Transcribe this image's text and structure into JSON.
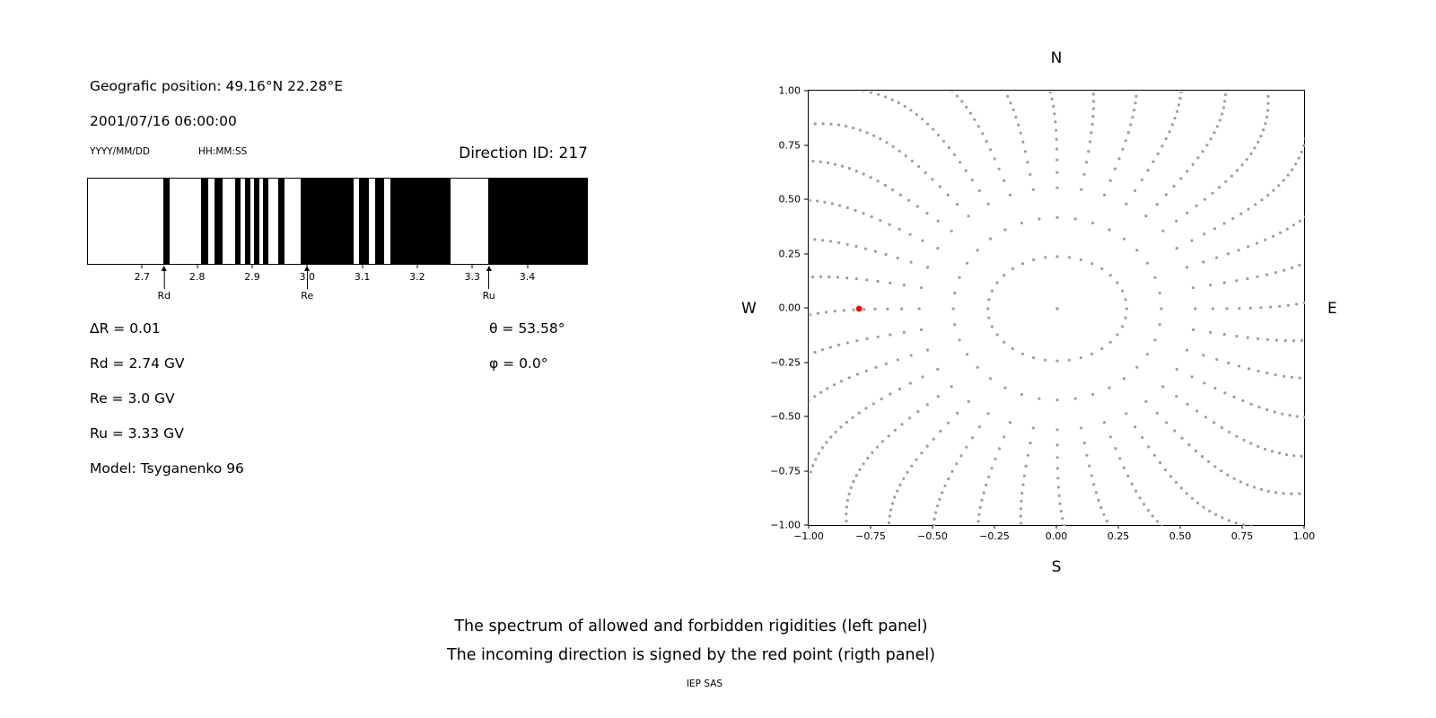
{
  "colors": {
    "background": "#ffffff",
    "ink": "#000000",
    "dot_gray": "#9e9e9e",
    "red": "#ff0000"
  },
  "left_panel": {
    "position": "Geografic position: 49.16°N 22.28°E",
    "datetime": "2001/07/16 06:00:00",
    "date_format": "YYYY/MM/DD",
    "time_format": "HH:MM:SS",
    "direction_id": "Direction ID: 217",
    "params": {
      "delta_r": "ΔR = 0.01",
      "rd": "Rd = 2.74 GV",
      "re": "Re = 3.0 GV",
      "ru": "Ru = 3.33 GV",
      "model": "Model: Tsyganenko 96",
      "theta": "θ = 53.58°",
      "phi": "φ = 0.0°"
    }
  },
  "right_panel": {
    "compass": {
      "north": "N",
      "south": "S",
      "east": "E",
      "west": "W"
    }
  },
  "caption": {
    "line1": "The spectrum of allowed and forbidden rigidities (left panel)",
    "line2": "The incoming direction is signed by the red point (rigth panel)",
    "credit": "IEP SAS"
  },
  "chart_data": [
    {
      "type": "bar",
      "name": "rigidity-spectrum",
      "description": "Spectrum of allowed (black) and forbidden (white) rigidity bands",
      "x_range_gv": [
        2.6,
        3.51
      ],
      "x_ticks": [
        "2.7",
        "2.8",
        "2.9",
        "3.0",
        "3.1",
        "3.2",
        "3.3",
        "3.4"
      ],
      "allowed_bands_gv": [
        [
          2.737,
          2.749
        ],
        [
          2.806,
          2.82
        ],
        [
          2.83,
          2.845
        ],
        [
          2.868,
          2.879
        ],
        [
          2.887,
          2.897
        ],
        [
          2.902,
          2.912
        ],
        [
          2.919,
          2.929
        ],
        [
          2.947,
          2.958
        ],
        [
          2.988,
          3.085
        ],
        [
          3.095,
          3.112
        ],
        [
          3.124,
          3.14
        ],
        [
          3.152,
          3.262
        ],
        [
          3.33,
          3.51
        ]
      ],
      "markers": [
        {
          "label": "Rd",
          "x_gv": 2.74
        },
        {
          "label": "Re",
          "x_gv": 3.0
        },
        {
          "label": "Ru",
          "x_gv": 3.33
        }
      ],
      "delta_r_gv": 0.01
    },
    {
      "type": "scatter",
      "name": "incoming-direction-map",
      "xlim": [
        -1.0,
        1.0
      ],
      "ylim": [
        -1.0,
        1.0
      ],
      "x_tick_labels": [
        "−1.00",
        "−0.75",
        "−0.50",
        "−0.25",
        "0.00",
        "0.25",
        "0.50",
        "0.75",
        "1.00"
      ],
      "y_tick_labels": [
        "1.00",
        "0.75",
        "0.50",
        "0.25",
        "0.00",
        "−0.25",
        "−0.50",
        "−0.75",
        "−1.00"
      ],
      "red_point": {
        "x": -0.8,
        "y": 0.0
      },
      "dots": {
        "center_dot": true,
        "inner_ring": {
          "rx": 0.28,
          "ry": 0.24,
          "count": 36
        },
        "spokes": {
          "count": 36,
          "angle_step_deg": 10,
          "r_start": 0.42,
          "r_end": 1.32,
          "dots_per_spoke": 24,
          "density_power": 0.6,
          "curl_deg": 10,
          "curl_power": 2.5
        }
      }
    }
  ]
}
